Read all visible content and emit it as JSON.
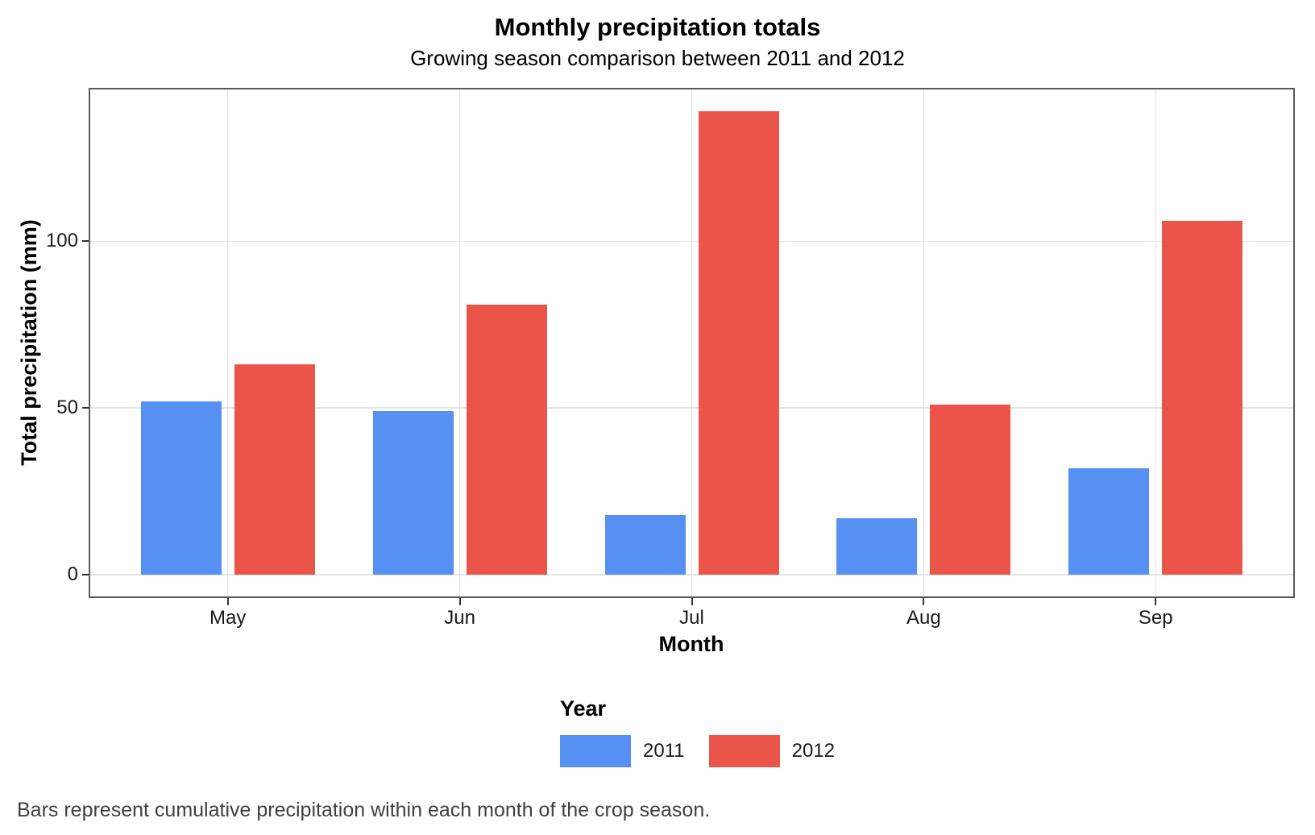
{
  "chart_data": {
    "type": "bar",
    "title": "Monthly precipitation totals",
    "subtitle": "Growing season comparison between 2011 and 2012",
    "xlabel": "Month",
    "ylabel": "Total precipitation (mm)",
    "categories": [
      "May",
      "Jun",
      "Jul",
      "Aug",
      "Sep"
    ],
    "series": [
      {
        "name": "2011",
        "color": "#5590F2",
        "values": [
          52,
          49,
          18,
          17,
          32
        ]
      },
      {
        "name": "2012",
        "color": "#EB5449",
        "values": [
          63,
          81,
          139,
          51,
          106
        ]
      }
    ],
    "yticks": [
      0,
      50,
      100
    ],
    "ylim": [
      -7,
      146
    ],
    "grid": true,
    "legend_title": "Year",
    "legend_position": "bottom",
    "panel_border_color": "#595959",
    "gridline_color": "#E3E3E3"
  },
  "caption": {
    "text": "Bars represent cumulative precipitation within each month of the crop season."
  }
}
